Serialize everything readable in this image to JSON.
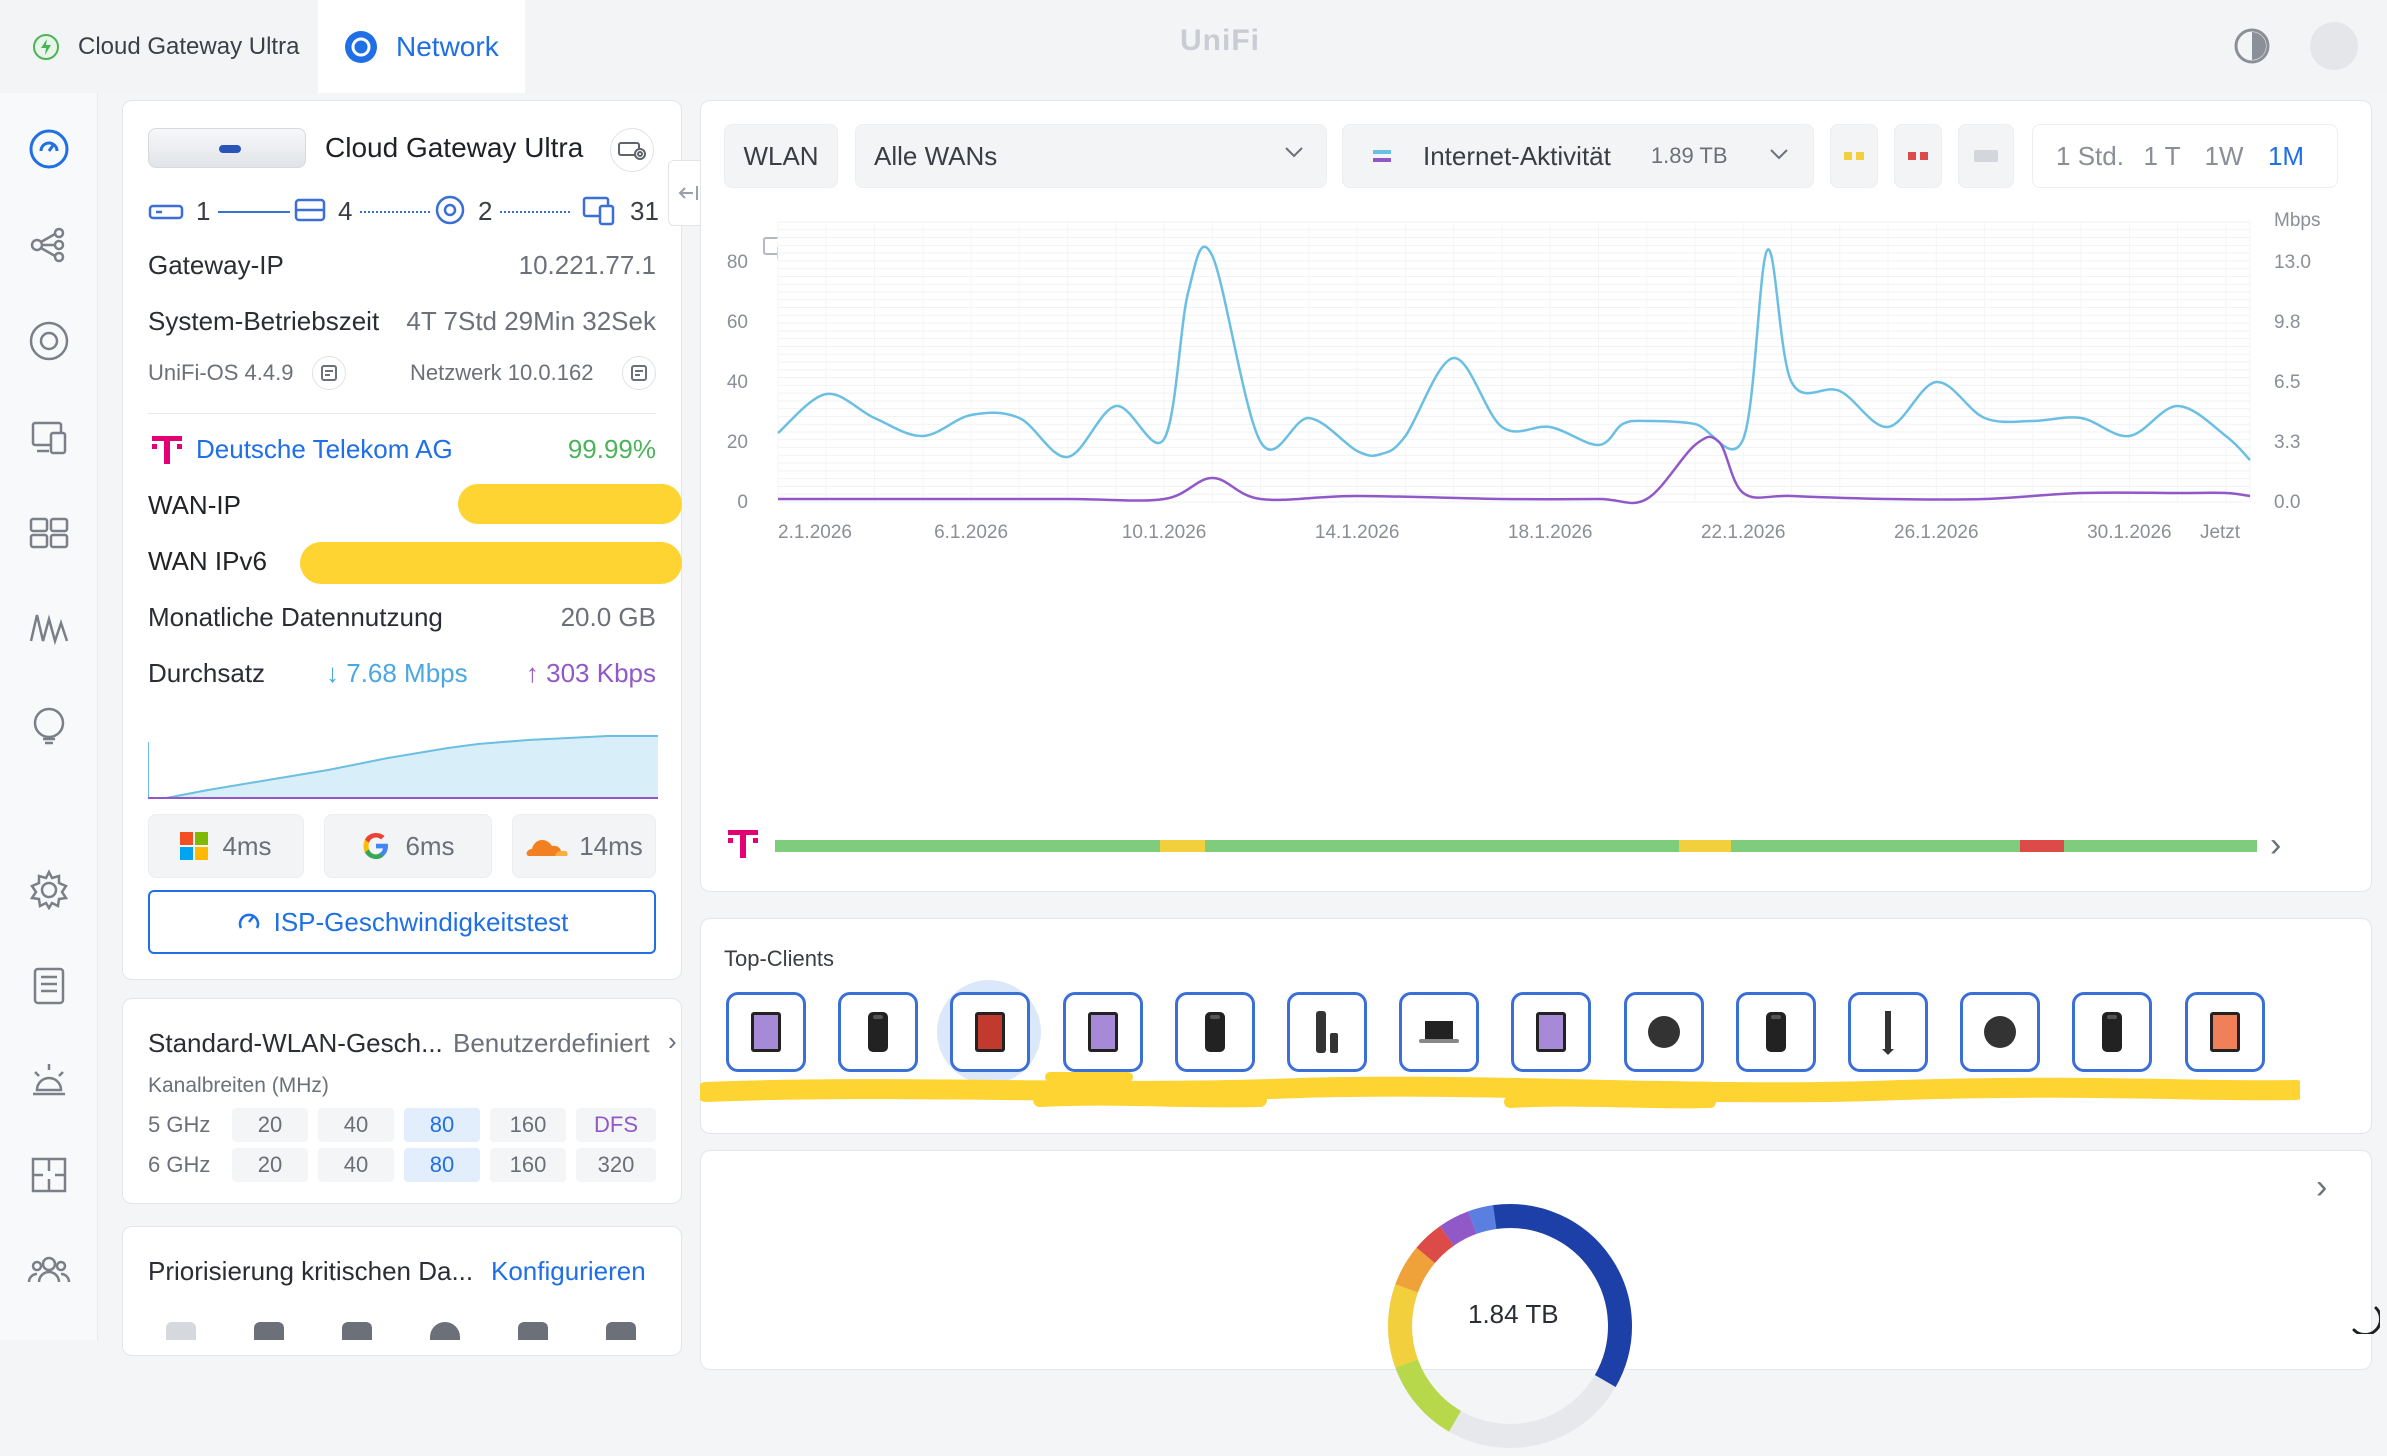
{
  "topbar": {
    "tab_gateway": "Cloud Gateway Ultra",
    "tab_network": "Network",
    "brand": "UniFi"
  },
  "gateway": {
    "name": "Cloud Gateway Ultra",
    "topology": {
      "wan": "1",
      "switches": "4",
      "aps": "2",
      "clients": "31"
    },
    "gateway_ip_label": "Gateway-IP",
    "gateway_ip": "10.221.77.1",
    "uptime_label": "System-Betriebszeit",
    "uptime": "4T 7Std 29Min 32Sek",
    "os_version": "UniFi-OS 4.4.9",
    "network_version": "Netzwerk 10.0.162",
    "isp_name": "Deutsche Telekom AG",
    "isp_uptime": "99.99%",
    "wan_ip_label": "WAN-IP",
    "wan_ipv6_label": "WAN IPv6",
    "data_usage_label": "Monatliche Datennutzung",
    "data_usage": "20.0 GB",
    "throughput_label": "Durchsatz",
    "down": "7.68 Mbps",
    "up": "303 Kbps",
    "latency": [
      {
        "name": "microsoft",
        "value": "4ms"
      },
      {
        "name": "google",
        "value": "6ms"
      },
      {
        "name": "cloudflare",
        "value": "14ms"
      }
    ],
    "speedtest_label": "ISP-Geschwindigkeitstest"
  },
  "wlan_widths": {
    "title": "Standard-WLAN-Gesch...",
    "mode": "Benutzerdefiniert",
    "subtitle": "Kanalbreiten (MHz)",
    "rows": [
      {
        "band": "5 GHz",
        "options": [
          "20",
          "40",
          "80",
          "160",
          "DFS"
        ],
        "selected": "80"
      },
      {
        "band": "6 GHz",
        "options": [
          "20",
          "40",
          "80",
          "160",
          "320"
        ],
        "selected": "80"
      }
    ]
  },
  "priority": {
    "title": "Priorisierung kritischen Da...",
    "action": "Konfigurieren"
  },
  "toolbar": {
    "wlan": "WLAN",
    "wan_select": "Alle WANs",
    "activity": "Internet-Aktivität",
    "activity_total": "1.89 TB",
    "ranges": [
      "1 Std.",
      "1 T",
      "1W",
      "1M"
    ],
    "active_range": "1M"
  },
  "chart_data": {
    "type": "line",
    "unit_right": "Mbps",
    "x_ticks": [
      "2.1.2026",
      "6.1.2026",
      "10.1.2026",
      "14.1.2026",
      "18.1.2026",
      "22.1.2026",
      "26.1.2026",
      "30.1.2026",
      "Jetzt"
    ],
    "y_left_ticks": [
      "0",
      "20",
      "40",
      "60",
      "80"
    ],
    "y_right_ticks": [
      "0.0",
      "3.3",
      "6.5",
      "9.8",
      "13.0"
    ],
    "y_left_range": [
      0,
      90
    ],
    "x_range": [
      0,
      30.5
    ],
    "grid": true,
    "series": [
      {
        "color": "#6bbfe2",
        "x": [
          0,
          1,
          2,
          3,
          4,
          5,
          6,
          7,
          8,
          8.5,
          9,
          10,
          11,
          12,
          12.5,
          13,
          14,
          15,
          16,
          17,
          17.5,
          18,
          19,
          20,
          20.5,
          21,
          22,
          23,
          24,
          25,
          26,
          27,
          28,
          29,
          30,
          30.5
        ],
        "y": [
          23,
          36,
          28,
          22,
          29,
          28,
          15,
          32,
          21,
          70,
          82,
          20,
          28,
          17,
          16,
          22,
          48,
          25,
          25,
          19,
          26,
          27,
          26,
          21,
          84,
          40,
          37,
          25,
          40,
          28,
          27,
          28,
          22,
          32,
          22,
          14
        ]
      },
      {
        "color": "#9158c8",
        "x": [
          0,
          3,
          6,
          8,
          9,
          10,
          12,
          15,
          17,
          18,
          19,
          19.5,
          20,
          21,
          23,
          25,
          27,
          29,
          30,
          30.5
        ],
        "y": [
          1,
          1,
          1,
          1,
          8,
          1,
          2,
          1,
          1,
          1,
          19,
          20,
          3,
          2,
          1,
          1,
          3,
          3,
          3,
          2
        ]
      }
    ],
    "status_bar": [
      {
        "from": 0,
        "to": 0.26,
        "status": "good"
      },
      {
        "from": 0.26,
        "to": 0.29,
        "status": "warn"
      },
      {
        "from": 0.29,
        "to": 0.61,
        "status": "good"
      },
      {
        "from": 0.61,
        "to": 0.645,
        "status": "warn"
      },
      {
        "from": 0.645,
        "to": 0.84,
        "status": "good"
      },
      {
        "from": 0.84,
        "to": 0.87,
        "status": "bad"
      },
      {
        "from": 0.87,
        "to": 1.0,
        "status": "good"
      }
    ]
  },
  "status_colors": {
    "good": "#7fcd7c",
    "warn": "#f2d03d",
    "bad": "#dd4b49"
  },
  "top_clients": {
    "title": "Top-Clients",
    "items": [
      "ipad-icon",
      "iphone-icon",
      "ipad-pro-icon",
      "ipad-icon",
      "iphone-icon",
      "smart-speaker-icon",
      "laptop-icon",
      "ipad-icon",
      "homepod-icon",
      "iphone-icon",
      "stylus-icon",
      "homepod-icon",
      "iphone-icon",
      "tablet-icon"
    ]
  },
  "donut": {
    "total": "1.84 TB"
  }
}
